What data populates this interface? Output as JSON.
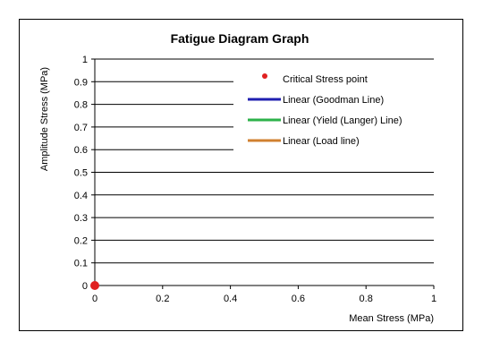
{
  "chart_data": {
    "type": "scatter",
    "title": "Fatigue Diagram Graph",
    "xlabel": "Mean Stress (MPa)",
    "ylabel": "Amplitude Stress (MPa)",
    "xlim": [
      0,
      1
    ],
    "ylim": [
      0,
      1
    ],
    "x_ticks": [
      0,
      0.2,
      0.4,
      0.6,
      0.8,
      1
    ],
    "y_ticks": [
      0,
      0.1,
      0.2,
      0.3,
      0.4,
      0.5,
      0.6,
      0.7,
      0.8,
      0.9,
      1
    ],
    "x_tick_labels": [
      "0",
      "0.2",
      "0.4",
      "0.6",
      "0.8",
      "1"
    ],
    "y_tick_labels": [
      "0",
      "0.1",
      "0.2",
      "0.3",
      "0.4",
      "0.5",
      "0.6",
      "0.7",
      "0.8",
      "0.9",
      "1"
    ],
    "grid": "horizontal",
    "legend_position": "top-right",
    "series": [
      {
        "name": "Critical Stress point",
        "kind": "marker",
        "color": "#e02020",
        "points": [
          {
            "x": 0,
            "y": 0
          }
        ]
      },
      {
        "name": "Linear (Goodman Line)",
        "kind": "line",
        "color": "#1f1fb0",
        "points": []
      },
      {
        "name": "Linear (Yield (Langer) Line)",
        "kind": "line",
        "color": "#2cb24a",
        "points": []
      },
      {
        "name": "Linear (Load line)",
        "kind": "line",
        "color": "#d08030",
        "points": []
      }
    ]
  }
}
